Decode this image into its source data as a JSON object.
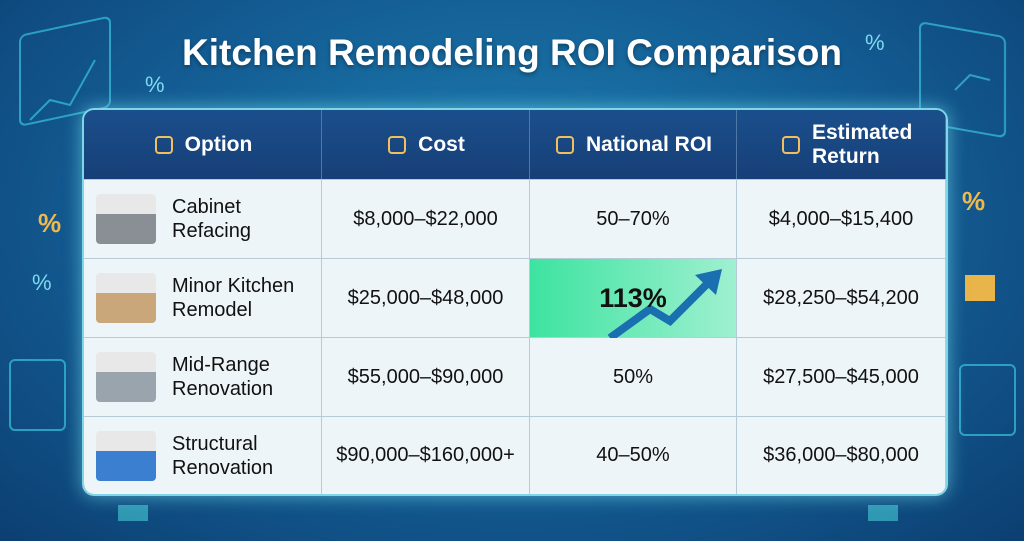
{
  "header": {
    "title": "Kitchen Remodeling ROI Comparison"
  },
  "table": {
    "columns": [
      "Option",
      "Cost",
      "National ROI",
      "Estimated Return"
    ],
    "rows": [
      [
        "Cabinet Refacing",
        "$8,000–$22,000",
        "50–70%",
        "$4,000–$15,400"
      ],
      [
        "Minor Kitchen Remodel",
        "$25,000–$48,000",
        "113%",
        "$28,250–$54,200"
      ],
      [
        "Mid-Range Renovation",
        "$55,000–$90,000",
        "50%",
        "$27,500–$45,000"
      ],
      [
        "Structural Renovation",
        "$90,000–$160,000+",
        "40–50%",
        "$36,000–$80,000"
      ]
    ]
  }
}
